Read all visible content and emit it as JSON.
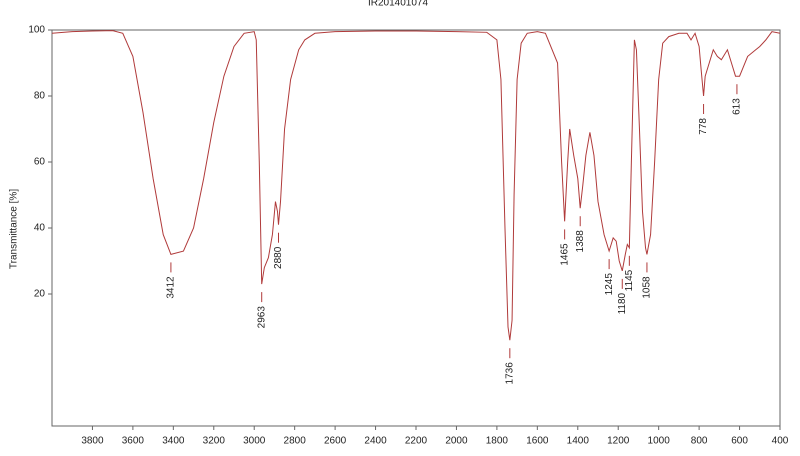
{
  "chart_data": {
    "type": "line",
    "title": "IR201401074",
    "ylabel": "Transmittance [%]",
    "xlim": [
      4000,
      400
    ],
    "xticks": [
      3800,
      3600,
      3400,
      3200,
      3000,
      2800,
      2600,
      2400,
      2200,
      2000,
      1800,
      1600,
      1400,
      1200,
      1000,
      800,
      600,
      400
    ],
    "ylim": [
      -20,
      100
    ],
    "yticks": [
      20,
      40,
      60,
      80,
      100
    ],
    "x": [
      4000,
      3900,
      3800,
      3700,
      3650,
      3600,
      3550,
      3500,
      3450,
      3412,
      3350,
      3300,
      3250,
      3200,
      3150,
      3100,
      3050,
      3000,
      2990,
      2975,
      2963,
      2950,
      2930,
      2910,
      2895,
      2885,
      2880,
      2870,
      2850,
      2820,
      2780,
      2750,
      2700,
      2600,
      2400,
      2200,
      2000,
      1850,
      1800,
      1780,
      1760,
      1745,
      1736,
      1725,
      1715,
      1700,
      1680,
      1650,
      1600,
      1560,
      1500,
      1480,
      1465,
      1450,
      1440,
      1420,
      1400,
      1388,
      1375,
      1360,
      1340,
      1320,
      1300,
      1270,
      1245,
      1225,
      1210,
      1195,
      1180,
      1165,
      1155,
      1145,
      1135,
      1120,
      1110,
      1095,
      1080,
      1065,
      1058,
      1040,
      1020,
      1000,
      980,
      950,
      900,
      860,
      840,
      820,
      800,
      790,
      778,
      770,
      750,
      730,
      710,
      690,
      660,
      640,
      620,
      613,
      600,
      580,
      560,
      520,
      500,
      470,
      440,
      400
    ],
    "series": [
      {
        "color": "#b03a3a",
        "values": [
          99,
          99.5,
          99.7,
          99.8,
          99,
          92,
          75,
          55,
          38,
          32,
          33,
          40,
          55,
          72,
          86,
          95,
          99,
          99.5,
          97,
          60,
          23,
          28,
          31,
          38,
          48,
          45,
          41,
          48,
          70,
          85,
          94,
          97,
          99,
          99.5,
          99.7,
          99.7,
          99.5,
          99.3,
          97,
          85,
          40,
          10,
          6,
          12,
          50,
          85,
          96,
          99,
          99.5,
          99,
          90,
          60,
          42,
          60,
          70,
          62,
          55,
          46,
          53,
          62,
          69,
          62,
          48,
          38,
          33,
          37,
          36,
          30,
          27,
          32,
          35,
          34,
          60,
          97,
          94,
          70,
          45,
          34,
          32,
          38,
          60,
          85,
          96,
          98,
          99,
          99,
          97,
          99,
          95,
          88,
          80,
          86,
          90,
          94,
          92,
          91,
          94,
          90,
          86,
          86,
          86,
          89,
          92,
          94,
          95,
          97,
          99.5,
          99
        ]
      }
    ],
    "peaks": [
      3412,
      2963,
      2880,
      1736,
      1465,
      1388,
      1245,
      1180,
      1145,
      1058,
      778,
      613
    ]
  }
}
